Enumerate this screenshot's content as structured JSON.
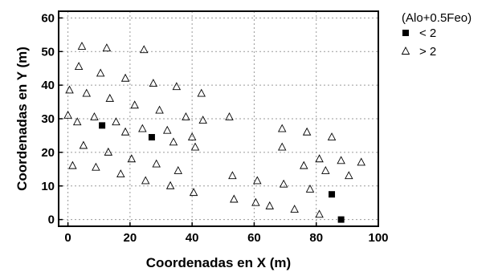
{
  "chart_data": {
    "type": "scatter",
    "title": "",
    "xlabel": "Coordenadas en X (m)",
    "ylabel": "Coordenadas en Y (m)",
    "xlim": [
      -3,
      100
    ],
    "ylim": [
      -2,
      62
    ],
    "xticks": [
      0,
      20,
      40,
      60,
      80,
      100
    ],
    "yticks": [
      0,
      10,
      20,
      30,
      40,
      50,
      60
    ],
    "grid": true,
    "legend_title": "(Alo+0.5Feo)",
    "legend_position": "outside-right-top",
    "series": [
      {
        "name": "< 2",
        "marker": "filled-square",
        "color": "#000000",
        "points": [
          [
            11,
            28
          ],
          [
            27,
            24.5
          ],
          [
            85,
            7.5
          ],
          [
            88,
            0
          ]
        ]
      },
      {
        "name": "> 2",
        "marker": "open-triangle",
        "color": "#000000",
        "points": [
          [
            0,
            31
          ],
          [
            0.5,
            38.5
          ],
          [
            1.5,
            16
          ],
          [
            3,
            29
          ],
          [
            3.5,
            45.5
          ],
          [
            4.5,
            51.5
          ],
          [
            5,
            22
          ],
          [
            6,
            37.5
          ],
          [
            8.5,
            30.5
          ],
          [
            9,
            15.5
          ],
          [
            10.5,
            43.5
          ],
          [
            12.5,
            51
          ],
          [
            13,
            20
          ],
          [
            13.5,
            36
          ],
          [
            15.5,
            29
          ],
          [
            17,
            13.5
          ],
          [
            18.5,
            26
          ],
          [
            18.5,
            42
          ],
          [
            20.5,
            18
          ],
          [
            21.5,
            34
          ],
          [
            24,
            27
          ],
          [
            24.5,
            50.5
          ],
          [
            25,
            11.5
          ],
          [
            27.5,
            40.5
          ],
          [
            28.5,
            16.5
          ],
          [
            29.5,
            32.5
          ],
          [
            32,
            26.5
          ],
          [
            33,
            10
          ],
          [
            34,
            23
          ],
          [
            35,
            39.5
          ],
          [
            35.5,
            14.5
          ],
          [
            38,
            30.5
          ],
          [
            40,
            24.5
          ],
          [
            40.5,
            8
          ],
          [
            41,
            21.5
          ],
          [
            43,
            37.5
          ],
          [
            43.5,
            29.5
          ],
          [
            52,
            30.5
          ],
          [
            53,
            13
          ],
          [
            53.5,
            6
          ],
          [
            60.5,
            5
          ],
          [
            61,
            11.5
          ],
          [
            65,
            4
          ],
          [
            69,
            27
          ],
          [
            69,
            21.5
          ],
          [
            69.5,
            10.5
          ],
          [
            73,
            3
          ],
          [
            76,
            16
          ],
          [
            77,
            26
          ],
          [
            78,
            9
          ],
          [
            81,
            1.5
          ],
          [
            81,
            18
          ],
          [
            83,
            14.5
          ],
          [
            85,
            24.5
          ],
          [
            88,
            17.5
          ],
          [
            90.5,
            13
          ],
          [
            94.5,
            17
          ]
        ]
      }
    ]
  }
}
